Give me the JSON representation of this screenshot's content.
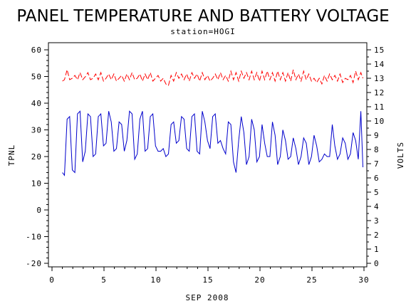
{
  "chart_data": {
    "type": "line",
    "title": "PANEL TEMPERATURE AND BATTERY VOLTAGE",
    "subtitle": "station=HOGI",
    "xlabel": "SEP 2008",
    "ylabel_left": "TPNL",
    "ylabel_right": "VOLTS",
    "xlim": [
      0,
      30
    ],
    "xticks": [
      0,
      5,
      10,
      15,
      20,
      25,
      30
    ],
    "ylim_left": [
      -20,
      60
    ],
    "yticks_left": [
      -20,
      -10,
      0,
      10,
      20,
      30,
      40,
      50,
      60
    ],
    "ylim_right": [
      0,
      15
    ],
    "yticks_right": [
      0,
      1,
      2,
      3,
      4,
      5,
      6,
      7,
      8,
      9,
      10,
      11,
      12,
      13,
      14,
      15
    ],
    "grid": false,
    "series": [
      {
        "axis": "left",
        "color": "#0000cc",
        "x": [
          1.0,
          1.2,
          1.45,
          1.7,
          1.95,
          2.2,
          2.45,
          2.7,
          2.95,
          3.2,
          3.45,
          3.7,
          3.95,
          4.2,
          4.45,
          4.7,
          4.95,
          5.2,
          5.45,
          5.7,
          5.95,
          6.2,
          6.45,
          6.7,
          6.95,
          7.2,
          7.45,
          7.7,
          7.95,
          8.2,
          8.45,
          8.7,
          8.95,
          9.2,
          9.45,
          9.7,
          9.95,
          10.2,
          10.45,
          10.7,
          10.95,
          11.2,
          11.45,
          11.7,
          11.95,
          12.2,
          12.45,
          12.7,
          12.95,
          13.2,
          13.45,
          13.7,
          13.95,
          14.2,
          14.45,
          14.7,
          14.95,
          15.2,
          15.45,
          15.7,
          15.95,
          16.2,
          16.45,
          16.7,
          16.95,
          17.2,
          17.45,
          17.7,
          17.95,
          18.2,
          18.45,
          18.7,
          18.95,
          19.2,
          19.45,
          19.7,
          19.95,
          20.2,
          20.45,
          20.7,
          20.95,
          21.2,
          21.45,
          21.7,
          21.95,
          22.2,
          22.45,
          22.7,
          22.95,
          23.2,
          23.45,
          23.7,
          23.95,
          24.2,
          24.45,
          24.7,
          24.95,
          25.2,
          25.45,
          25.7,
          25.95,
          26.2,
          26.45,
          26.7,
          26.95,
          27.2,
          27.45,
          27.7,
          27.95,
          28.2,
          28.45,
          28.7,
          28.95,
          29.2,
          29.45,
          29.7,
          29.9
        ],
        "y": [
          14,
          13,
          34,
          35,
          15,
          14,
          36,
          37,
          18,
          22,
          36,
          35,
          20,
          21,
          35,
          36,
          24,
          25,
          37,
          33,
          22,
          23,
          33,
          32,
          22,
          26,
          37,
          36,
          19,
          21,
          34,
          37,
          22,
          23,
          35,
          36,
          24,
          22,
          22,
          23,
          20,
          21,
          32,
          33,
          25,
          26,
          35,
          34,
          23,
          22,
          35,
          36,
          22,
          21,
          37,
          33,
          26,
          23,
          35,
          36,
          25,
          26,
          23,
          21,
          33,
          32,
          18,
          14,
          26,
          35,
          29,
          17,
          20,
          34,
          30,
          18,
          20,
          32,
          25,
          20,
          20,
          33,
          28,
          17,
          20,
          30,
          26,
          19,
          20,
          27,
          23,
          17,
          20,
          27,
          25,
          17,
          20,
          28,
          24,
          18,
          19,
          21,
          20,
          20,
          32,
          24,
          19,
          21,
          27,
          25,
          19,
          21,
          29,
          26,
          19,
          37,
          16
        ]
      },
      {
        "axis": "right",
        "color": "#ff0000",
        "dashed": true,
        "x": [
          1.0,
          1.2,
          1.45,
          1.7,
          1.95,
          2.2,
          2.45,
          2.7,
          2.95,
          3.2,
          3.45,
          3.7,
          3.95,
          4.2,
          4.45,
          4.7,
          4.95,
          5.2,
          5.45,
          5.7,
          5.95,
          6.2,
          6.45,
          6.7,
          6.95,
          7.2,
          7.45,
          7.7,
          7.95,
          8.2,
          8.45,
          8.7,
          8.95,
          9.2,
          9.45,
          9.7,
          9.95,
          10.2,
          10.45,
          10.7,
          10.95,
          11.2,
          11.45,
          11.7,
          11.95,
          12.2,
          12.45,
          12.7,
          12.95,
          13.2,
          13.45,
          13.7,
          13.95,
          14.2,
          14.45,
          14.7,
          14.95,
          15.2,
          15.45,
          15.7,
          15.95,
          16.2,
          16.45,
          16.7,
          16.95,
          17.2,
          17.45,
          17.7,
          17.95,
          18.2,
          18.45,
          18.7,
          18.95,
          19.2,
          19.45,
          19.7,
          19.95,
          20.2,
          20.45,
          20.7,
          20.95,
          21.2,
          21.45,
          21.7,
          21.95,
          22.2,
          22.45,
          22.7,
          22.95,
          23.2,
          23.45,
          23.7,
          23.95,
          24.2,
          24.45,
          24.7,
          24.95,
          25.2,
          25.45,
          25.7,
          25.95,
          26.2,
          26.45,
          26.7,
          26.95,
          27.2,
          27.45,
          27.7,
          27.95,
          28.2,
          28.45,
          28.7,
          28.95,
          29.2,
          29.45,
          29.7,
          29.9
        ],
        "y": [
          12.8,
          12.9,
          13.6,
          12.9,
          13.0,
          13.2,
          12.9,
          13.4,
          12.9,
          13.1,
          13.4,
          12.9,
          13.0,
          13.3,
          12.9,
          13.4,
          12.8,
          13.0,
          13.3,
          12.9,
          13.3,
          12.8,
          13.0,
          13.2,
          12.8,
          13.3,
          12.9,
          13.4,
          12.9,
          13.0,
          13.3,
          12.8,
          13.3,
          12.9,
          13.4,
          12.8,
          13.0,
          13.2,
          12.8,
          13.0,
          12.6,
          12.5,
          13.2,
          12.8,
          13.4,
          13.0,
          13.3,
          12.9,
          13.3,
          12.8,
          13.4,
          13.0,
          13.3,
          12.8,
          13.4,
          12.9,
          13.2,
          12.8,
          13.0,
          13.3,
          12.9,
          13.4,
          12.9,
          13.2,
          12.8,
          13.5,
          12.9,
          13.4,
          12.8,
          13.5,
          13.0,
          13.4,
          12.9,
          13.5,
          12.9,
          13.4,
          12.8,
          13.5,
          12.9,
          13.5,
          12.9,
          13.4,
          12.8,
          13.5,
          12.9,
          13.4,
          12.8,
          13.4,
          12.8,
          13.6,
          12.9,
          13.3,
          12.8,
          13.5,
          12.9,
          13.3,
          12.8,
          13.0,
          12.7,
          13.0,
          12.6,
          13.2,
          12.8,
          13.3,
          12.9,
          13.2,
          12.8,
          13.3,
          12.7,
          13.0,
          12.9,
          13.2,
          12.7,
          13.5,
          12.9,
          13.4,
          13.0
        ]
      }
    ]
  }
}
